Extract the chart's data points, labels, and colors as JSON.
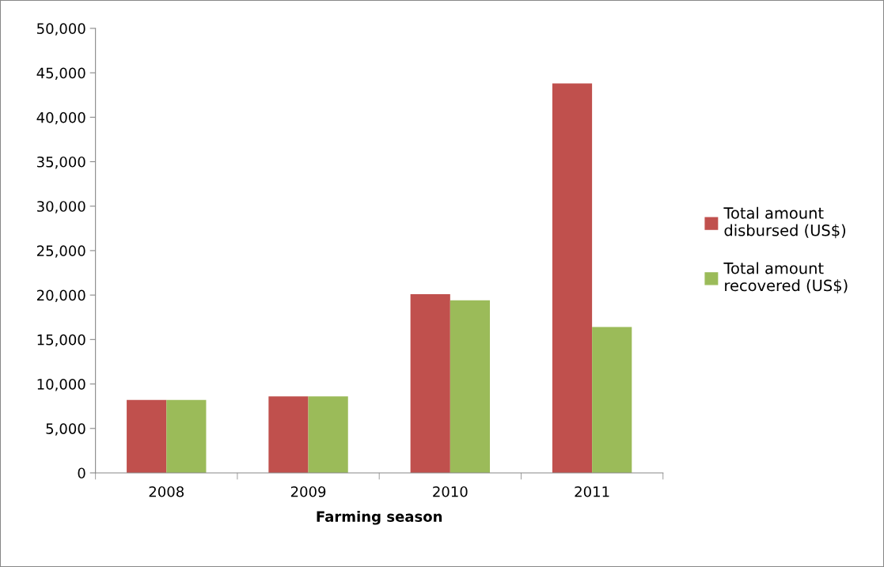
{
  "chart_data": {
    "type": "bar",
    "xlabel": "Farming season",
    "categories": [
      "2008",
      "2009",
      "2010",
      "2011"
    ],
    "series": [
      {
        "name": "Total amount disbursed (US$)",
        "color": "#c0504d",
        "values": [
          8200,
          8600,
          20100,
          43800
        ]
      },
      {
        "name": "Total amount recovered (US$)",
        "color": "#9bbb59",
        "values": [
          8200,
          8600,
          19400,
          16400
        ]
      }
    ],
    "ylim": [
      0,
      50000
    ],
    "yticks": [
      {
        "value": 0,
        "label": "0"
      },
      {
        "value": 5000,
        "label": "5,000"
      },
      {
        "value": 10000,
        "label": "10,000"
      },
      {
        "value": 15000,
        "label": "15,000"
      },
      {
        "value": 20000,
        "label": "20,000"
      },
      {
        "value": 25000,
        "label": "25,000"
      },
      {
        "value": 30000,
        "label": "30,000"
      },
      {
        "value": 35000,
        "label": "35,000"
      },
      {
        "value": 40000,
        "label": "40,000"
      },
      {
        "value": 45000,
        "label": "45,000"
      },
      {
        "value": 50000,
        "label": "50,000"
      }
    ],
    "grid": false,
    "legend": "right"
  }
}
